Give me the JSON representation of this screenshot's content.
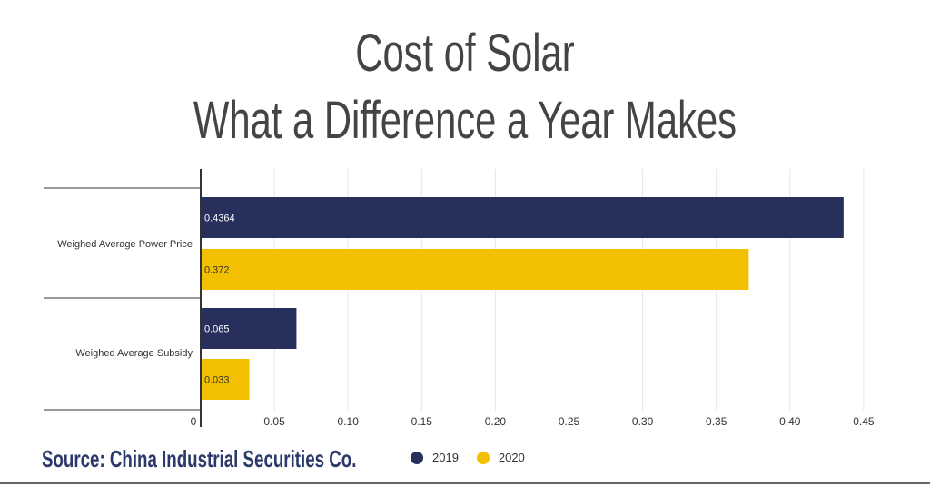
{
  "title_line1": "Cost of Solar",
  "title_line2": "What a Difference a Year Makes",
  "source": "Source: China Industrial Securities Co.",
  "colors": {
    "series_2019": "#27305c",
    "series_2020": "#f2c000",
    "grid": "#e6e6e6",
    "axis": "#333333",
    "text": "#333333"
  },
  "chart_data": {
    "type": "bar",
    "orientation": "horizontal",
    "categories": [
      "Weighed Average Power Price",
      "Weighed Average Subsidy"
    ],
    "series": [
      {
        "name": "2019",
        "values": [
          0.4364,
          0.065
        ],
        "labels": [
          "0.4364",
          "0.065"
        ]
      },
      {
        "name": "2020",
        "values": [
          0.372,
          0.033
        ],
        "labels": [
          "0.372",
          "0.033"
        ]
      }
    ],
    "xticks": [
      "0",
      "0.05",
      "0.10",
      "0.15",
      "0.20",
      "0.25",
      "0.30",
      "0.35",
      "0.40",
      "0.45"
    ],
    "xlim": [
      0,
      0.45
    ],
    "grid": true,
    "legend_position": "bottom"
  }
}
